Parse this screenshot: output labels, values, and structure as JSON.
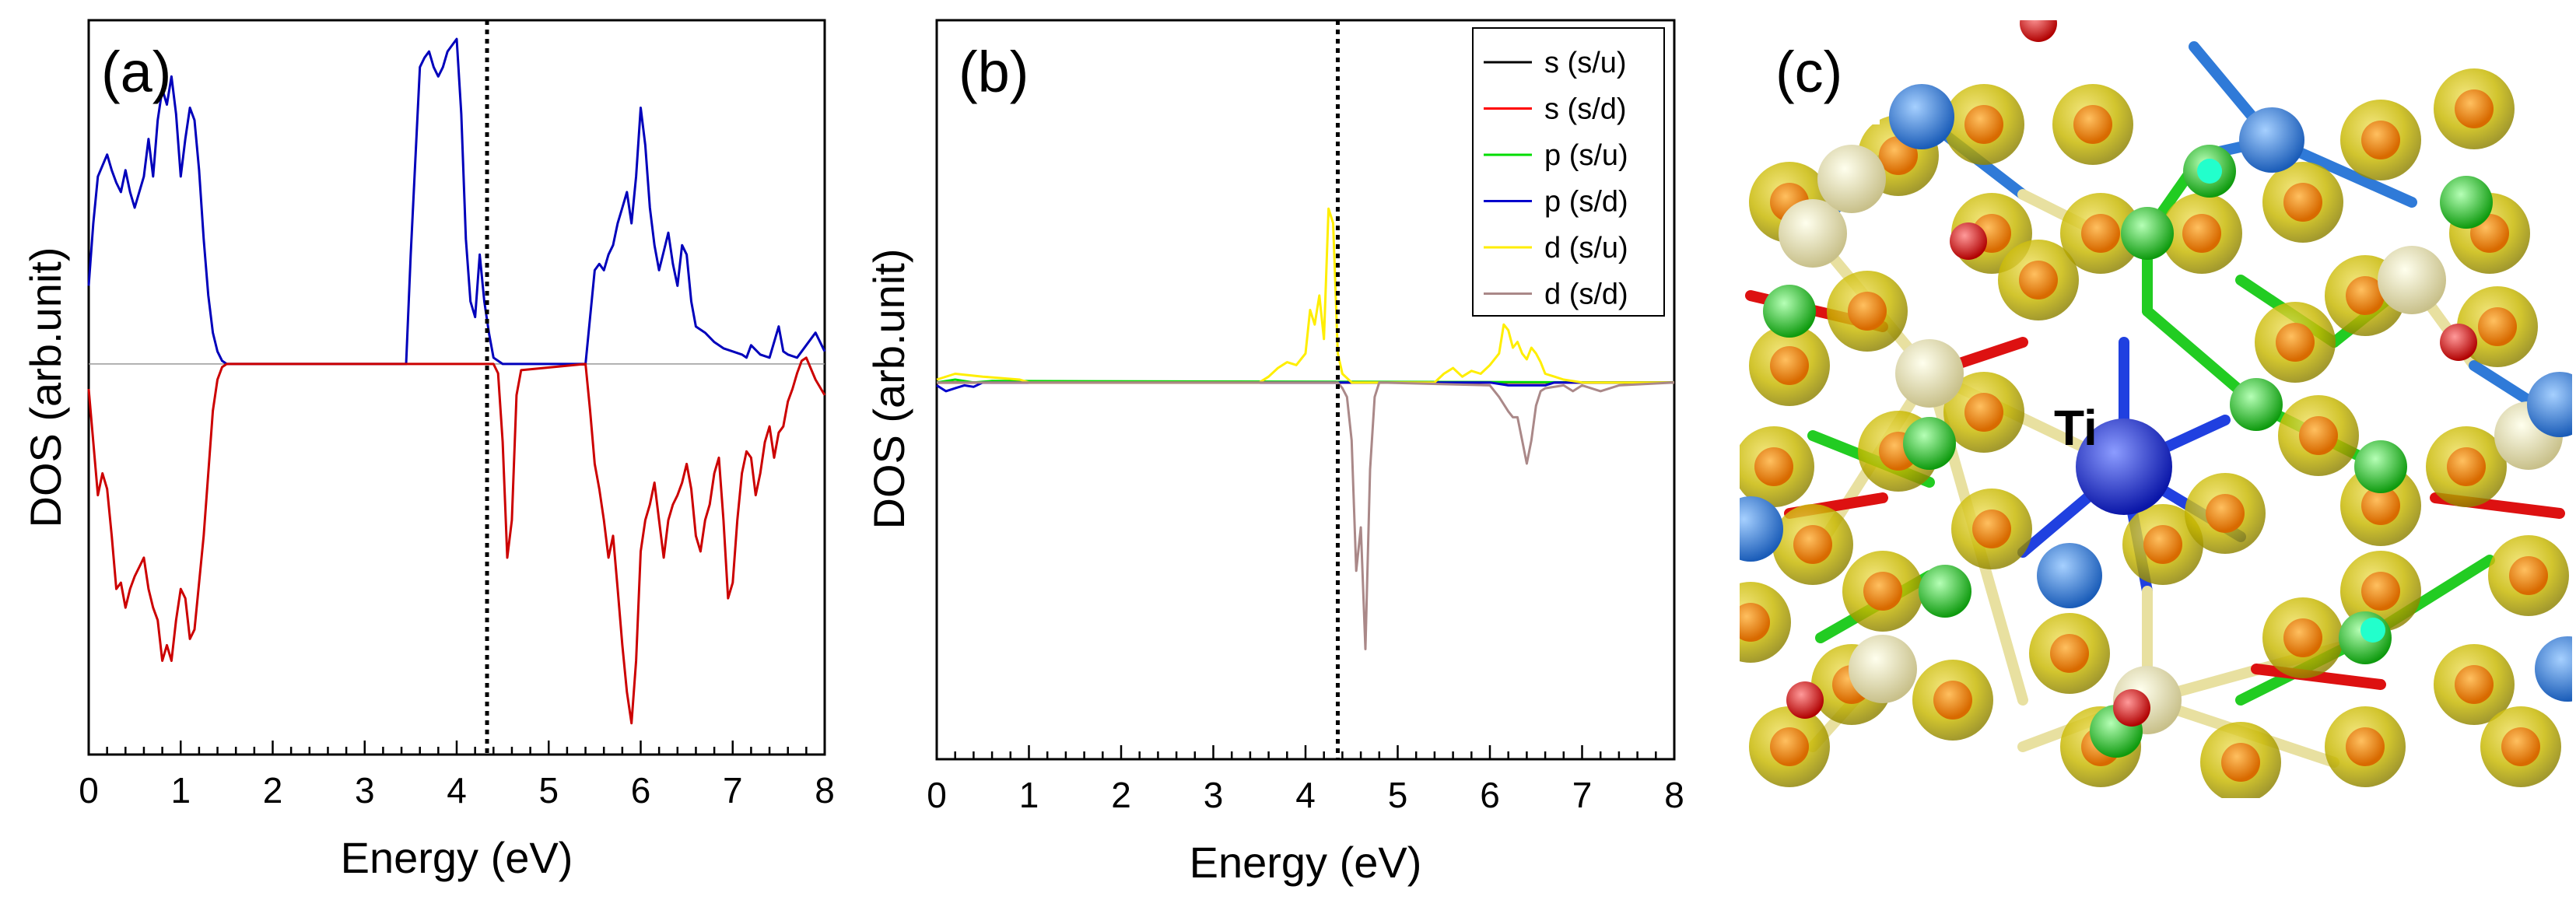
{
  "chart_data": [
    {
      "panel_label": "(a)",
      "type": "line",
      "xlabel": "Energy (eV)",
      "ylabel": "DOS (arb.unit)",
      "xlim": [
        0,
        8
      ],
      "ylim": [
        -1.25,
        1.1
      ],
      "x_ticks": [
        "0",
        "1",
        "2",
        "3",
        "4",
        "5",
        "6",
        "7",
        "8"
      ],
      "fermi_level": 4.33,
      "series": [
        {
          "color": "#0000bb",
          "x": [
            0,
            0.05,
            0.1,
            0.2,
            0.25,
            0.3,
            0.35,
            0.4,
            0.45,
            0.5,
            0.55,
            0.6,
            0.65,
            0.7,
            0.75,
            0.8,
            0.85,
            0.9,
            0.95,
            1.0,
            1.05,
            1.1,
            1.15,
            1.2,
            1.25,
            1.3,
            1.35,
            1.4,
            1.45,
            1.5,
            3.45,
            3.5,
            3.55,
            3.6,
            3.65,
            3.7,
            3.75,
            3.8,
            3.85,
            3.9,
            3.95,
            4.0,
            4.05,
            4.1,
            4.15,
            4.2,
            4.25,
            4.3,
            4.35,
            4.4,
            4.45,
            4.5,
            5.4,
            5.45,
            5.5,
            5.55,
            5.6,
            5.65,
            5.7,
            5.75,
            5.8,
            5.85,
            5.9,
            5.95,
            6.0,
            6.05,
            6.1,
            6.15,
            6.2,
            6.25,
            6.3,
            6.35,
            6.4,
            6.45,
            6.5,
            6.55,
            6.6,
            6.7,
            6.8,
            6.9,
            7.0,
            7.1,
            7.15,
            7.2,
            7.3,
            7.4,
            7.5,
            7.55,
            7.6,
            7.7,
            7.8,
            7.9,
            8.0
          ],
          "y": [
            0.25,
            0.45,
            0.6,
            0.67,
            0.62,
            0.58,
            0.55,
            0.62,
            0.55,
            0.5,
            0.55,
            0.6,
            0.72,
            0.6,
            0.78,
            0.88,
            0.83,
            0.92,
            0.8,
            0.6,
            0.72,
            0.82,
            0.78,
            0.62,
            0.4,
            0.22,
            0.1,
            0.04,
            0.01,
            0.0,
            0.0,
            0.35,
            0.65,
            0.95,
            0.98,
            1.0,
            0.95,
            0.92,
            0.95,
            1.0,
            1.02,
            1.04,
            0.8,
            0.4,
            0.2,
            0.15,
            0.35,
            0.2,
            0.1,
            0.02,
            0.01,
            0.0,
            0.0,
            0.15,
            0.3,
            0.32,
            0.3,
            0.35,
            0.38,
            0.45,
            0.5,
            0.55,
            0.45,
            0.6,
            0.82,
            0.7,
            0.5,
            0.38,
            0.3,
            0.36,
            0.42,
            0.32,
            0.25,
            0.38,
            0.35,
            0.2,
            0.12,
            0.1,
            0.07,
            0.05,
            0.04,
            0.03,
            0.02,
            0.06,
            0.03,
            0.02,
            0.12,
            0.04,
            0.03,
            0.02,
            0.06,
            0.1,
            0.04
          ]
        },
        {
          "color": "#cc0000",
          "x": [
            0,
            0.05,
            0.1,
            0.15,
            0.2,
            0.25,
            0.3,
            0.35,
            0.4,
            0.45,
            0.5,
            0.55,
            0.6,
            0.65,
            0.7,
            0.75,
            0.8,
            0.85,
            0.9,
            0.95,
            1.0,
            1.05,
            1.1,
            1.15,
            1.2,
            1.25,
            1.3,
            1.35,
            1.4,
            1.45,
            1.5,
            4.4,
            4.45,
            4.5,
            4.55,
            4.6,
            4.65,
            4.7,
            5.4,
            5.45,
            5.5,
            5.55,
            5.6,
            5.65,
            5.7,
            5.75,
            5.8,
            5.85,
            5.9,
            5.95,
            6.0,
            6.05,
            6.1,
            6.15,
            6.2,
            6.25,
            6.3,
            6.35,
            6.4,
            6.45,
            6.5,
            6.55,
            6.6,
            6.65,
            6.7,
            6.75,
            6.8,
            6.85,
            6.9,
            6.95,
            7.0,
            7.05,
            7.1,
            7.15,
            7.2,
            7.25,
            7.3,
            7.35,
            7.4,
            7.45,
            7.5,
            7.55,
            7.6,
            7.65,
            7.7,
            7.75,
            7.8,
            7.9,
            8.0
          ],
          "y": [
            -0.08,
            -0.25,
            -0.42,
            -0.35,
            -0.4,
            -0.55,
            -0.72,
            -0.7,
            -0.78,
            -0.72,
            -0.68,
            -0.65,
            -0.62,
            -0.72,
            -0.78,
            -0.82,
            -0.95,
            -0.9,
            -0.95,
            -0.82,
            -0.72,
            -0.75,
            -0.88,
            -0.85,
            -0.7,
            -0.55,
            -0.35,
            -0.15,
            -0.05,
            -0.01,
            0.0,
            0.0,
            -0.03,
            -0.25,
            -0.62,
            -0.5,
            -0.1,
            -0.02,
            0.0,
            -0.15,
            -0.32,
            -0.4,
            -0.5,
            -0.62,
            -0.55,
            -0.72,
            -0.9,
            -1.05,
            -1.15,
            -0.95,
            -0.6,
            -0.5,
            -0.45,
            -0.38,
            -0.5,
            -0.62,
            -0.5,
            -0.45,
            -0.42,
            -0.38,
            -0.32,
            -0.4,
            -0.55,
            -0.6,
            -0.5,
            -0.45,
            -0.35,
            -0.3,
            -0.5,
            -0.75,
            -0.7,
            -0.5,
            -0.35,
            -0.28,
            -0.3,
            -0.42,
            -0.35,
            -0.25,
            -0.2,
            -0.3,
            -0.22,
            -0.2,
            -0.12,
            -0.08,
            -0.03,
            0.01,
            0.02,
            -0.05,
            -0.1
          ]
        }
      ]
    },
    {
      "panel_label": "(b)",
      "type": "line",
      "xlabel": "Energy (eV)",
      "ylabel": "DOS (arb.unit)",
      "xlim": [
        0,
        8
      ],
      "ylim": [
        -1.3,
        1.25
      ],
      "x_ticks": [
        "0",
        "1",
        "2",
        "3",
        "4",
        "5",
        "6",
        "7",
        "8"
      ],
      "fermi_level": 4.35,
      "legend": "top-right",
      "series": [
        {
          "name": "s (s/u)",
          "color": "#000000",
          "x": [
            0,
            8
          ],
          "y": [
            0,
            0
          ]
        },
        {
          "name": "s (s/d)",
          "color": "#ff0000",
          "x": [
            0,
            8
          ],
          "y": [
            0,
            0
          ]
        },
        {
          "name": "p (s/u)",
          "color": "#00dd00",
          "x": [
            0,
            0.2,
            0.4,
            0.6,
            8
          ],
          "y": [
            0,
            0.01,
            0,
            0.005,
            0
          ]
        },
        {
          "name": "p (s/d)",
          "color": "#0000cc",
          "x": [
            0,
            0.05,
            0.1,
            0.2,
            0.3,
            0.4,
            0.5,
            6.0,
            6.2,
            6.4,
            6.6,
            6.7,
            8
          ],
          "y": [
            -0.01,
            -0.02,
            -0.03,
            -0.02,
            -0.01,
            -0.015,
            0,
            0,
            -0.01,
            -0.01,
            -0.01,
            0,
            0
          ]
        },
        {
          "name": "d (s/u)",
          "color": "#ffee00",
          "x": [
            0,
            0.2,
            0.5,
            0.9,
            1.0,
            3.5,
            3.6,
            3.7,
            3.8,
            3.9,
            4.0,
            4.05,
            4.1,
            4.15,
            4.2,
            4.25,
            4.3,
            4.35,
            4.4,
            4.5,
            5.4,
            5.5,
            5.6,
            5.7,
            5.8,
            5.9,
            6.0,
            6.1,
            6.15,
            6.2,
            6.25,
            6.3,
            6.35,
            6.4,
            6.45,
            6.5,
            6.55,
            6.6,
            6.7,
            6.8,
            7.0,
            8
          ],
          "y": [
            0.01,
            0.03,
            0.02,
            0.01,
            0,
            0,
            0.02,
            0.05,
            0.07,
            0.06,
            0.1,
            0.25,
            0.2,
            0.3,
            0.15,
            0.6,
            0.55,
            0.1,
            0.03,
            0,
            0,
            0.03,
            0.05,
            0.02,
            0.04,
            0.03,
            0.06,
            0.1,
            0.2,
            0.18,
            0.12,
            0.14,
            0.1,
            0.08,
            0.12,
            0.1,
            0.07,
            0.03,
            0.02,
            0.01,
            0,
            0
          ]
        },
        {
          "name": "d (s/d)",
          "color": "#aa8888",
          "x": [
            0,
            4.35,
            4.4,
            4.45,
            4.5,
            4.55,
            4.6,
            4.65,
            4.7,
            4.75,
            4.8,
            6.0,
            6.1,
            6.2,
            6.25,
            6.3,
            6.35,
            6.4,
            6.45,
            6.5,
            6.55,
            6.6,
            6.8,
            6.9,
            7.0,
            7.2,
            7.4,
            8
          ],
          "y": [
            0,
            0,
            -0.02,
            -0.05,
            -0.2,
            -0.65,
            -0.5,
            -0.92,
            -0.3,
            -0.05,
            0,
            -0.01,
            -0.05,
            -0.1,
            -0.12,
            -0.12,
            -0.2,
            -0.28,
            -0.2,
            -0.08,
            -0.03,
            -0.02,
            -0.01,
            -0.03,
            -0.01,
            -0.03,
            -0.01,
            0
          ]
        }
      ]
    }
  ],
  "panel_c": {
    "label": "(c)",
    "atom_label": "Ti"
  },
  "colors": {
    "fermi_line": "#000000",
    "ti_atom": "#2233cc",
    "o_atom": "#dd1111",
    "n_atom": "#22cc22",
    "bond_tan": "#e8e0a0",
    "isosurface": "#c8c000",
    "core_orange": "#ee8a10",
    "blue_atom": "#2f7ad8"
  }
}
